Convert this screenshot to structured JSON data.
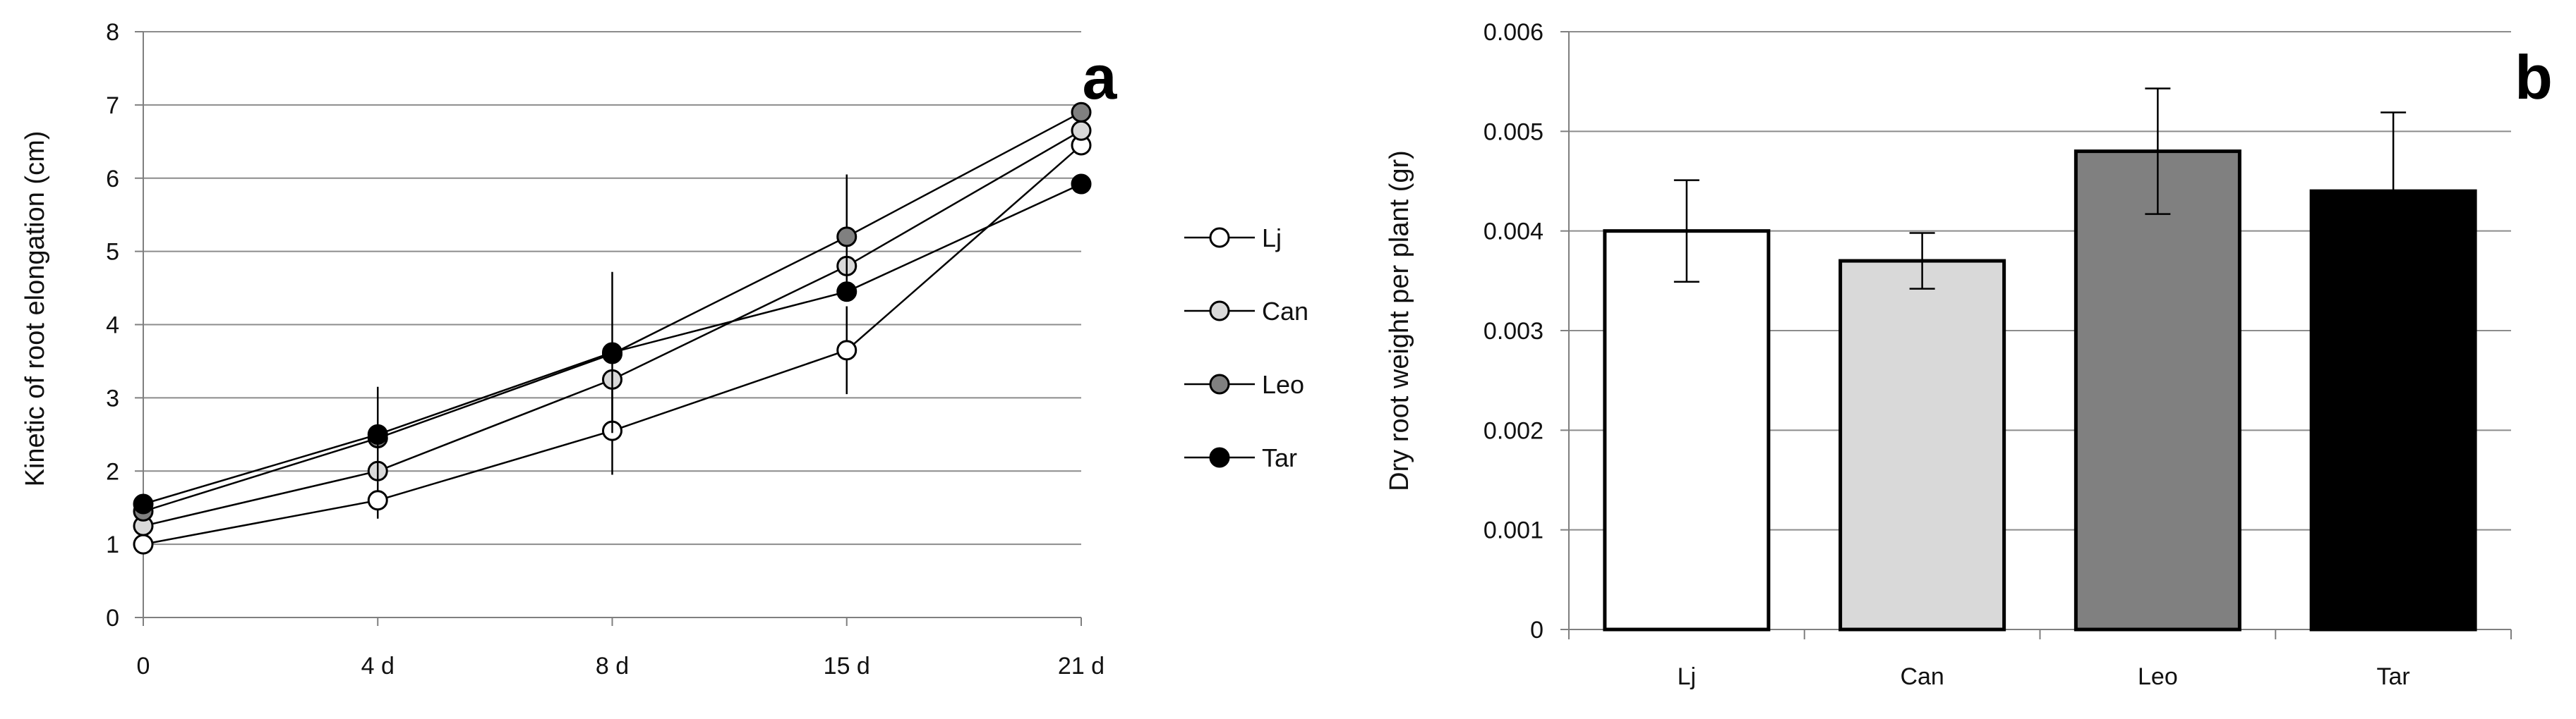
{
  "colors": {
    "Lj": "#ffffff",
    "Can": "#d9d9d9",
    "Leo": "#808080",
    "Tar": "#000000",
    "grid": "#8c8c8c",
    "axis": "#7f7f7f"
  },
  "chart_data": [
    {
      "type": "line",
      "panel_label": "a",
      "title": "",
      "xlabel": "",
      "ylabel": "Kinetic of root elongation (cm)",
      "categories": [
        "0",
        "4 d",
        "8 d",
        "15 d",
        "21 d"
      ],
      "ylim": [
        0,
        8
      ],
      "yticks": [
        "0",
        "1",
        "2",
        "3",
        "4",
        "5",
        "6",
        "7",
        "8"
      ],
      "grid": true,
      "legend_position": "right",
      "series": [
        {
          "name": "Lj",
          "values": [
            1.0,
            1.6,
            2.55,
            3.65,
            6.45
          ],
          "errors": [
            0.0,
            0.25,
            0.6,
            0.6,
            0.0
          ]
        },
        {
          "name": "Can",
          "values": [
            1.25,
            2.0,
            3.25,
            4.8,
            6.65
          ],
          "errors": [
            0,
            0,
            0,
            0,
            0
          ]
        },
        {
          "name": "Leo",
          "values": [
            1.45,
            2.45,
            3.6,
            5.2,
            6.9
          ],
          "errors": [
            0,
            0,
            0,
            0.85,
            0
          ]
        },
        {
          "name": "Tar",
          "values": [
            1.55,
            2.5,
            3.62,
            4.45,
            5.92
          ],
          "errors": [
            0,
            0.65,
            1.1,
            0,
            0
          ]
        }
      ]
    },
    {
      "type": "bar",
      "panel_label": "b",
      "title": "",
      "xlabel": "",
      "ylabel": "Dry root weight per plant (gr)",
      "categories": [
        "Lj",
        "Can",
        "Leo",
        "Tar"
      ],
      "ylim": [
        0,
        0.006
      ],
      "yticks": [
        "0",
        "0.001",
        "0.002",
        "0.003",
        "0.004",
        "0.005",
        "0.006"
      ],
      "grid": true,
      "values": [
        0.004,
        0.0037,
        0.0048,
        0.0044
      ],
      "errors": [
        0.00051,
        0.00028,
        0.00063,
        0.00079
      ]
    }
  ]
}
